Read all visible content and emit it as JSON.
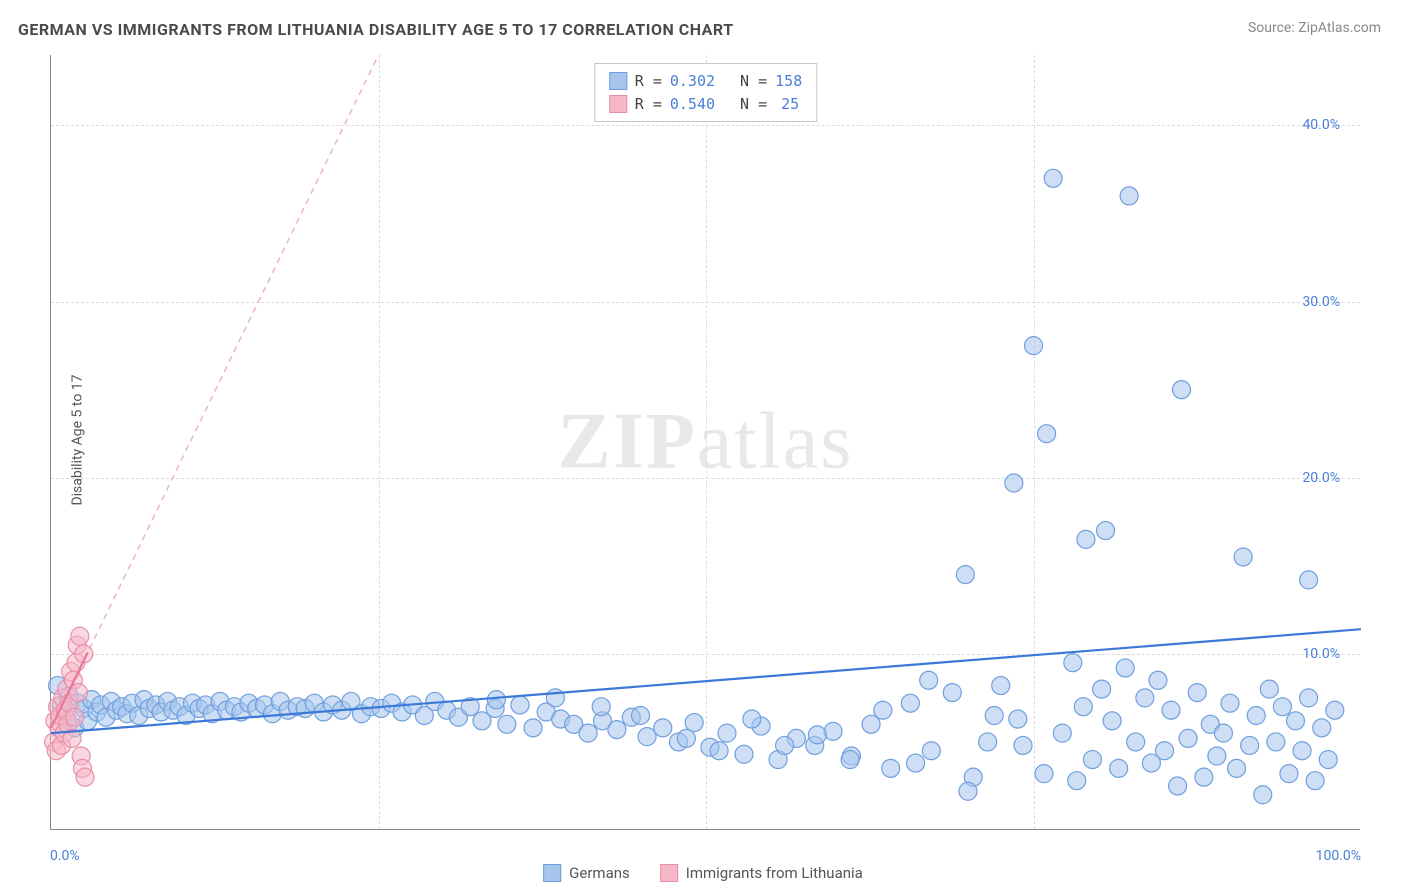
{
  "title": "GERMAN VS IMMIGRANTS FROM LITHUANIA DISABILITY AGE 5 TO 17 CORRELATION CHART",
  "source": "Source: ZipAtlas.com",
  "watermark": "ZIPatlas",
  "y_axis_label": "Disability Age 5 to 17",
  "chart": {
    "type": "scatter",
    "xlim": [
      0,
      100
    ],
    "ylim": [
      0,
      44
    ],
    "x_ticks": [
      "0.0%",
      "100.0%"
    ],
    "y_ticks": [
      {
        "v": 10,
        "label": "10.0%"
      },
      {
        "v": 20,
        "label": "20.0%"
      },
      {
        "v": 30,
        "label": "30.0%"
      },
      {
        "v": 40,
        "label": "40.0%"
      }
    ],
    "x_gridlines_pct": [
      25,
      50,
      75
    ],
    "grid_color": "#dcdcdc",
    "background_color": "#ffffff",
    "marker_radius": 9,
    "marker_stroke_width": 1.2,
    "series": [
      {
        "name": "Germans",
        "color_fill": "#a5c5ec",
        "color_stroke": "#6f9fde",
        "fill_opacity": 0.55,
        "R": "0.302",
        "N": "158",
        "trend": {
          "x1": 0,
          "y1": 5.5,
          "x2": 100,
          "y2": 11.4,
          "color": "#3b78d8",
          "width": 2.2,
          "dash": "none"
        },
        "points": [
          [
            0.5,
            8.2
          ],
          [
            0.8,
            7.1
          ],
          [
            1.2,
            6.3
          ],
          [
            1.4,
            7.6
          ],
          [
            1.8,
            5.8
          ],
          [
            2.1,
            7.2
          ],
          [
            2.5,
            6.9
          ],
          [
            2.8,
            6.2
          ],
          [
            3.1,
            7.4
          ],
          [
            3.5,
            6.7
          ],
          [
            3.8,
            7.1
          ],
          [
            4.2,
            6.4
          ],
          [
            4.6,
            7.3
          ],
          [
            5.0,
            6.8
          ],
          [
            5.4,
            7.0
          ],
          [
            5.8,
            6.6
          ],
          [
            6.2,
            7.2
          ],
          [
            6.7,
            6.5
          ],
          [
            7.1,
            7.4
          ],
          [
            7.5,
            6.9
          ],
          [
            8.0,
            7.1
          ],
          [
            8.4,
            6.7
          ],
          [
            8.9,
            7.3
          ],
          [
            9.3,
            6.8
          ],
          [
            9.8,
            7.0
          ],
          [
            10.3,
            6.5
          ],
          [
            10.8,
            7.2
          ],
          [
            11.3,
            6.9
          ],
          [
            11.8,
            7.1
          ],
          [
            12.3,
            6.6
          ],
          [
            12.9,
            7.3
          ],
          [
            13.4,
            6.8
          ],
          [
            14.0,
            7.0
          ],
          [
            14.5,
            6.7
          ],
          [
            15.1,
            7.2
          ],
          [
            15.7,
            6.9
          ],
          [
            16.3,
            7.1
          ],
          [
            16.9,
            6.6
          ],
          [
            17.5,
            7.3
          ],
          [
            18.1,
            6.8
          ],
          [
            18.8,
            7.0
          ],
          [
            19.4,
            6.9
          ],
          [
            20.1,
            7.2
          ],
          [
            20.8,
            6.7
          ],
          [
            21.5,
            7.1
          ],
          [
            22.2,
            6.8
          ],
          [
            22.9,
            7.3
          ],
          [
            23.7,
            6.6
          ],
          [
            24.4,
            7.0
          ],
          [
            25.2,
            6.9
          ],
          [
            26.0,
            7.2
          ],
          [
            26.8,
            6.7
          ],
          [
            27.6,
            7.1
          ],
          [
            28.5,
            6.5
          ],
          [
            29.3,
            7.3
          ],
          [
            30.2,
            6.8
          ],
          [
            31.1,
            6.4
          ],
          [
            32.0,
            7.0
          ],
          [
            32.9,
            6.2
          ],
          [
            33.9,
            6.9
          ],
          [
            34.8,
            6.0
          ],
          [
            35.8,
            7.1
          ],
          [
            36.8,
            5.8
          ],
          [
            37.8,
            6.7
          ],
          [
            38.9,
            6.3
          ],
          [
            39.9,
            6.0
          ],
          [
            41.0,
            5.5
          ],
          [
            42.1,
            6.2
          ],
          [
            43.2,
            5.7
          ],
          [
            44.3,
            6.4
          ],
          [
            45.5,
            5.3
          ],
          [
            46.7,
            5.8
          ],
          [
            47.9,
            5.0
          ],
          [
            49.1,
            6.1
          ],
          [
            50.3,
            4.7
          ],
          [
            51.6,
            5.5
          ],
          [
            52.9,
            4.3
          ],
          [
            54.2,
            5.9
          ],
          [
            55.5,
            4.0
          ],
          [
            56.9,
            5.2
          ],
          [
            58.3,
            4.8
          ],
          [
            59.7,
            5.6
          ],
          [
            61.1,
            4.2
          ],
          [
            62.6,
            6.0
          ],
          [
            64.1,
            3.5
          ],
          [
            65.6,
            7.2
          ],
          [
            67.2,
            4.5
          ],
          [
            68.8,
            7.8
          ],
          [
            70.4,
            3.0
          ],
          [
            72.0,
            6.5
          ],
          [
            69.8,
            14.5
          ],
          [
            72.5,
            8.2
          ],
          [
            73.5,
            19.7
          ],
          [
            74.2,
            4.8
          ],
          [
            75.0,
            27.5
          ],
          [
            75.8,
            3.2
          ],
          [
            76.0,
            22.5
          ],
          [
            76.5,
            37.0
          ],
          [
            77.2,
            5.5
          ],
          [
            78.0,
            9.5
          ],
          [
            78.8,
            7.0
          ],
          [
            79.0,
            16.5
          ],
          [
            79.5,
            4.0
          ],
          [
            80.2,
            8.0
          ],
          [
            80.5,
            17.0
          ],
          [
            81.0,
            6.2
          ],
          [
            81.5,
            3.5
          ],
          [
            82.0,
            9.2
          ],
          [
            82.3,
            36.0
          ],
          [
            82.8,
            5.0
          ],
          [
            83.5,
            7.5
          ],
          [
            84.0,
            3.8
          ],
          [
            84.5,
            8.5
          ],
          [
            85.0,
            4.5
          ],
          [
            85.5,
            6.8
          ],
          [
            86.0,
            2.5
          ],
          [
            86.3,
            25.0
          ],
          [
            86.8,
            5.2
          ],
          [
            87.5,
            7.8
          ],
          [
            88.0,
            3.0
          ],
          [
            88.5,
            6.0
          ],
          [
            89.0,
            4.2
          ],
          [
            89.5,
            5.5
          ],
          [
            90.0,
            7.2
          ],
          [
            90.5,
            3.5
          ],
          [
            91.0,
            15.5
          ],
          [
            91.5,
            4.8
          ],
          [
            92.0,
            6.5
          ],
          [
            92.5,
            2.0
          ],
          [
            93.0,
            8.0
          ],
          [
            93.5,
            5.0
          ],
          [
            94.0,
            7.0
          ],
          [
            94.5,
            3.2
          ],
          [
            95.0,
            6.2
          ],
          [
            95.5,
            4.5
          ],
          [
            96.0,
            7.5
          ],
          [
            96.5,
            2.8
          ],
          [
            97.0,
            5.8
          ],
          [
            97.5,
            4.0
          ],
          [
            98.0,
            6.8
          ],
          [
            96.0,
            14.2
          ],
          [
            78.3,
            2.8
          ],
          [
            71.5,
            5.0
          ],
          [
            73.8,
            6.3
          ],
          [
            67.0,
            8.5
          ],
          [
            70.0,
            2.2
          ],
          [
            34.0,
            7.4
          ],
          [
            38.5,
            7.5
          ],
          [
            42.0,
            7.0
          ],
          [
            45.0,
            6.5
          ],
          [
            48.5,
            5.2
          ],
          [
            51.0,
            4.5
          ],
          [
            53.5,
            6.3
          ],
          [
            56.0,
            4.8
          ],
          [
            58.5,
            5.4
          ],
          [
            61.0,
            4.0
          ],
          [
            63.5,
            6.8
          ],
          [
            66.0,
            3.8
          ]
        ]
      },
      {
        "name": "Immigrants from Lithuania",
        "color_fill": "#f5b8c8",
        "color_stroke": "#e88fa8",
        "fill_opacity": 0.55,
        "R": "0.540",
        "N": "25",
        "trend": {
          "x1": 0,
          "y1": 5.8,
          "x2": 25,
          "y2": 44,
          "color": "#efb4c4",
          "width": 1.5,
          "dash": "6 5",
          "solid_until_x": 2.8
        },
        "points": [
          [
            0.2,
            5.0
          ],
          [
            0.3,
            6.2
          ],
          [
            0.4,
            4.5
          ],
          [
            0.5,
            7.0
          ],
          [
            0.6,
            5.8
          ],
          [
            0.7,
            6.5
          ],
          [
            0.8,
            4.8
          ],
          [
            0.9,
            7.5
          ],
          [
            1.0,
            5.5
          ],
          [
            1.1,
            6.8
          ],
          [
            1.2,
            8.0
          ],
          [
            1.3,
            6.0
          ],
          [
            1.4,
            7.2
          ],
          [
            1.5,
            9.0
          ],
          [
            1.6,
            5.2
          ],
          [
            1.7,
            8.5
          ],
          [
            1.8,
            6.4
          ],
          [
            1.9,
            9.5
          ],
          [
            2.0,
            10.5
          ],
          [
            2.1,
            7.8
          ],
          [
            2.2,
            11.0
          ],
          [
            2.3,
            4.2
          ],
          [
            2.4,
            3.5
          ],
          [
            2.5,
            10.0
          ],
          [
            2.6,
            3.0
          ]
        ]
      }
    ],
    "legend_labels": {
      "series1": "Germans",
      "series2": "Immigrants from Lithuania"
    },
    "stats_labels": {
      "R": "R =",
      "N": "N ="
    }
  }
}
